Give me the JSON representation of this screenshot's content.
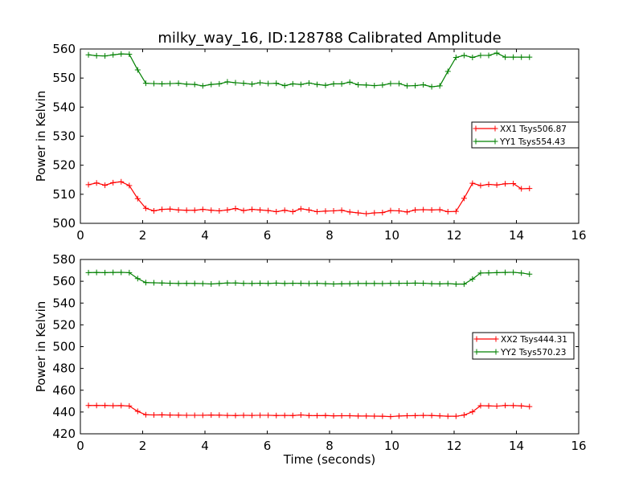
{
  "title": "milky_way_16, ID:128788 Calibrated Amplitude",
  "chart_data": [
    {
      "type": "line",
      "title": "milky_way_16, ID:128788 Calibrated Amplitude",
      "xlabel": "",
      "ylabel": "Power in Kelvin",
      "xlim": [
        0,
        16
      ],
      "ylim": [
        500,
        560
      ],
      "xticks": [
        0,
        2,
        4,
        6,
        8,
        10,
        12,
        14,
        16
      ],
      "yticks": [
        500,
        510,
        520,
        530,
        540,
        550,
        560
      ],
      "grid": false,
      "legend_position": "right",
      "x": [
        0.26,
        0.52,
        0.79,
        1.05,
        1.31,
        1.57,
        1.84,
        2.1,
        2.36,
        2.62,
        2.88,
        3.15,
        3.41,
        3.67,
        3.93,
        4.2,
        4.46,
        4.72,
        4.98,
        5.24,
        5.51,
        5.77,
        6.03,
        6.29,
        6.56,
        6.82,
        7.08,
        7.34,
        7.6,
        7.87,
        8.13,
        8.39,
        8.65,
        8.92,
        9.18,
        9.44,
        9.7,
        9.96,
        10.23,
        10.49,
        10.75,
        11.01,
        11.28,
        11.54,
        11.8,
        12.06,
        12.32,
        12.59,
        12.85,
        13.11,
        13.37,
        13.64,
        13.9,
        14.16,
        14.42
      ],
      "series": [
        {
          "name": "XX1 Tsys506.87",
          "color": "#ff0000",
          "values": [
            513.3,
            513.9,
            513.1,
            514.0,
            514.3,
            513.0,
            508.5,
            505.2,
            504.3,
            504.8,
            504.9,
            504.6,
            504.5,
            504.5,
            504.8,
            504.5,
            504.3,
            504.6,
            505.1,
            504.4,
            504.8,
            504.6,
            504.4,
            504.0,
            504.5,
            504.0,
            505.0,
            504.6,
            504.0,
            504.2,
            504.3,
            504.5,
            503.9,
            503.6,
            503.3,
            503.6,
            503.7,
            504.4,
            504.3,
            503.9,
            504.6,
            504.7,
            504.6,
            504.7,
            504.0,
            504.1,
            508.6,
            513.8,
            513.0,
            513.4,
            513.2,
            513.6,
            513.7,
            511.9,
            512.0
          ]
        },
        {
          "name": "YY1 Tsys554.43",
          "color": "#008000",
          "values": [
            558.0,
            557.7,
            557.6,
            558.0,
            558.3,
            558.2,
            552.8,
            548.2,
            548.1,
            548.0,
            548.1,
            548.2,
            547.9,
            547.8,
            547.3,
            547.8,
            548.0,
            548.7,
            548.4,
            548.2,
            547.9,
            548.4,
            548.1,
            548.2,
            547.4,
            548.0,
            547.8,
            548.3,
            547.8,
            547.5,
            548.0,
            548.0,
            548.6,
            547.7,
            547.6,
            547.4,
            547.6,
            548.1,
            548.1,
            547.3,
            547.4,
            547.7,
            547.0,
            547.3,
            552.3,
            557.1,
            557.8,
            557.1,
            557.8,
            557.8,
            558.6,
            557.2,
            557.2,
            557.2,
            557.2
          ]
        }
      ]
    },
    {
      "type": "line",
      "title": "",
      "xlabel": "Time (seconds)",
      "ylabel": "Power in Kelvin",
      "xlim": [
        0,
        16
      ],
      "ylim": [
        420,
        580
      ],
      "xticks": [
        0,
        2,
        4,
        6,
        8,
        10,
        12,
        14,
        16
      ],
      "yticks": [
        420,
        440,
        460,
        480,
        500,
        520,
        540,
        560,
        580
      ],
      "grid": false,
      "legend_position": "right",
      "x": [
        0.26,
        0.52,
        0.79,
        1.05,
        1.31,
        1.57,
        1.84,
        2.1,
        2.36,
        2.62,
        2.88,
        3.15,
        3.41,
        3.67,
        3.93,
        4.2,
        4.46,
        4.72,
        4.98,
        5.24,
        5.51,
        5.77,
        6.03,
        6.29,
        6.56,
        6.82,
        7.08,
        7.34,
        7.6,
        7.87,
        8.13,
        8.39,
        8.65,
        8.92,
        9.18,
        9.44,
        9.7,
        9.96,
        10.23,
        10.49,
        10.75,
        11.01,
        11.28,
        11.54,
        11.8,
        12.06,
        12.32,
        12.59,
        12.85,
        13.11,
        13.37,
        13.64,
        13.9,
        14.16,
        14.42
      ],
      "series": [
        {
          "name": "XX2 Tsys444.31",
          "color": "#ff0000",
          "values": [
            446.0,
            446.0,
            446.0,
            445.8,
            445.9,
            445.5,
            440.6,
            437.5,
            437.3,
            437.4,
            437.2,
            437.1,
            437.0,
            437.0,
            437.0,
            437.2,
            437.1,
            436.9,
            436.8,
            437.0,
            436.9,
            437.0,
            437.0,
            436.8,
            436.9,
            436.8,
            437.3,
            436.8,
            436.7,
            436.8,
            436.5,
            436.6,
            436.6,
            436.3,
            436.3,
            436.2,
            436.1,
            435.8,
            436.3,
            436.6,
            436.7,
            436.9,
            436.8,
            436.5,
            436.1,
            436.1,
            437.2,
            440.2,
            445.8,
            445.6,
            445.4,
            446.0,
            445.9,
            445.6,
            445.0
          ]
        },
        {
          "name": "YY2 Tsys570.23",
          "color": "#008000",
          "values": [
            567.9,
            568.1,
            567.9,
            568.1,
            568.2,
            567.9,
            562.5,
            558.8,
            558.6,
            558.4,
            558.2,
            558.0,
            558.1,
            558.0,
            557.9,
            557.5,
            558.0,
            558.4,
            558.4,
            558.1,
            558.0,
            558.2,
            558.0,
            558.3,
            558.0,
            558.2,
            558.1,
            557.9,
            558.1,
            557.8,
            557.5,
            557.7,
            557.8,
            558.0,
            558.0,
            558.0,
            557.9,
            558.1,
            558.1,
            558.2,
            558.3,
            558.2,
            557.8,
            557.6,
            557.9,
            557.4,
            557.4,
            562.0,
            567.6,
            567.7,
            567.9,
            568.1,
            568.2,
            567.6,
            566.5
          ]
        }
      ]
    }
  ]
}
